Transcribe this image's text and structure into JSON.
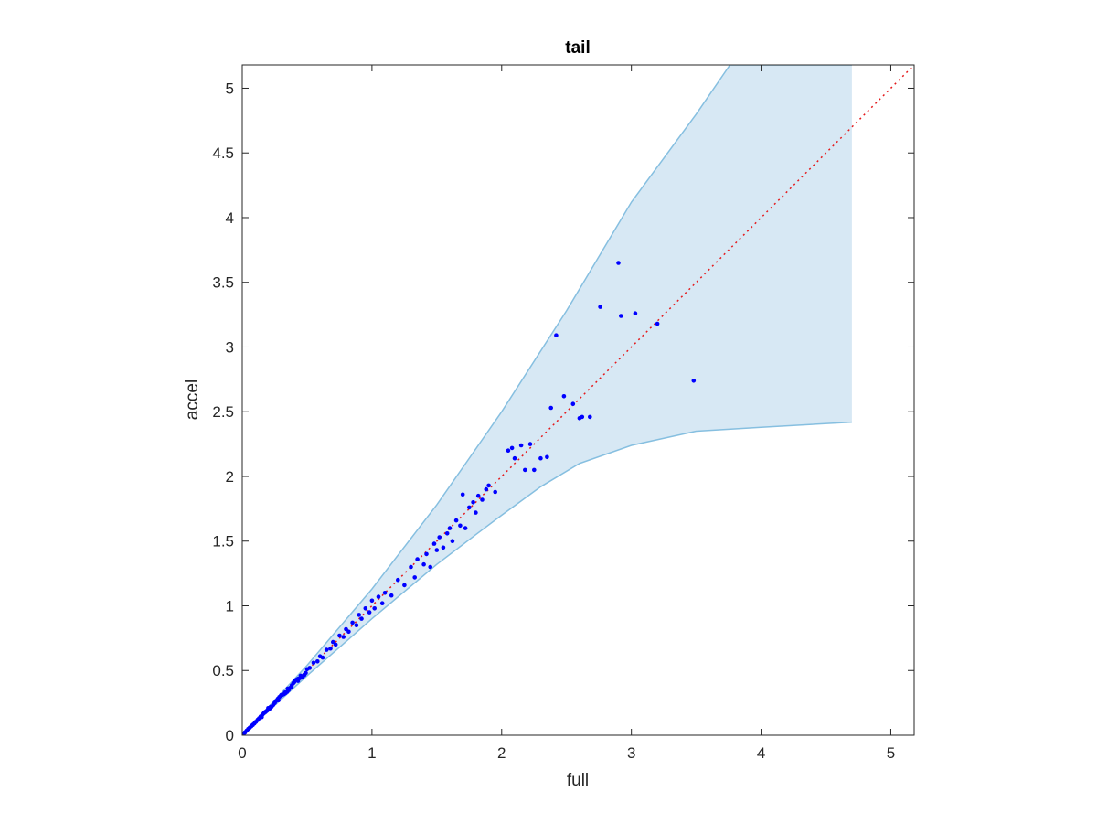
{
  "chart_data": {
    "type": "scatter",
    "title": "tail",
    "xlabel": "full",
    "ylabel": "accel",
    "xlim": [
      0,
      5.18
    ],
    "ylim": [
      0,
      5.18
    ],
    "grid": false,
    "x_ticks": [
      "0",
      "1",
      "2",
      "3",
      "4",
      "5"
    ],
    "y_ticks": [
      "0",
      "0.5",
      "1",
      "1.5",
      "2",
      "2.5",
      "3",
      "3.5",
      "4",
      "4.5",
      "5"
    ],
    "reference_line": {
      "style": "dotted",
      "color": "#e41a1c",
      "slope": 1,
      "intercept": 0
    },
    "band": {
      "fill_color": "#d7e8f4",
      "edge_color": "#86bfe0",
      "upper": [
        [
          0,
          0
        ],
        [
          0.5,
          0.54
        ],
        [
          1,
          1.13
        ],
        [
          1.5,
          1.78
        ],
        [
          2,
          2.5
        ],
        [
          2.5,
          3.28
        ],
        [
          3,
          4.12
        ],
        [
          3.5,
          4.8
        ],
        [
          3.76,
          5.18
        ],
        [
          4.7,
          5.18
        ]
      ],
      "lower": [
        [
          0,
          0
        ],
        [
          0.5,
          0.46
        ],
        [
          1,
          0.9
        ],
        [
          1.5,
          1.32
        ],
        [
          1.8,
          1.55
        ],
        [
          2,
          1.7
        ],
        [
          2.3,
          1.92
        ],
        [
          2.6,
          2.1
        ],
        [
          3,
          2.24
        ],
        [
          3.5,
          2.35
        ],
        [
          4,
          2.38
        ],
        [
          4.7,
          2.42
        ]
      ]
    },
    "series": [
      {
        "color": "#0000ff",
        "points": [
          [
            0.02,
            0.02
          ],
          [
            0.05,
            0.05
          ],
          [
            0.08,
            0.08
          ],
          [
            0.1,
            0.1
          ],
          [
            0.12,
            0.12
          ],
          [
            0.15,
            0.14
          ],
          [
            0.18,
            0.18
          ],
          [
            0.2,
            0.21
          ],
          [
            0.22,
            0.22
          ],
          [
            0.25,
            0.25
          ],
          [
            0.28,
            0.27
          ],
          [
            0.3,
            0.31
          ],
          [
            0.33,
            0.33
          ],
          [
            0.35,
            0.36
          ],
          [
            0.38,
            0.37
          ],
          [
            0.4,
            0.41
          ],
          [
            0.43,
            0.42
          ],
          [
            0.45,
            0.46
          ],
          [
            0.48,
            0.47
          ],
          [
            0.5,
            0.51
          ],
          [
            0.52,
            0.52
          ],
          [
            0.55,
            0.56
          ],
          [
            0.58,
            0.57
          ],
          [
            0.6,
            0.61
          ],
          [
            0.62,
            0.6
          ],
          [
            0.65,
            0.66
          ],
          [
            0.68,
            0.67
          ],
          [
            0.7,
            0.72
          ],
          [
            0.72,
            0.7
          ],
          [
            0.75,
            0.77
          ],
          [
            0.78,
            0.76
          ],
          [
            0.8,
            0.82
          ],
          [
            0.82,
            0.8
          ],
          [
            0.85,
            0.87
          ],
          [
            0.88,
            0.85
          ],
          [
            0.9,
            0.93
          ],
          [
            0.92,
            0.9
          ],
          [
            0.95,
            0.98
          ],
          [
            0.98,
            0.95
          ],
          [
            1,
            1.04
          ],
          [
            1.02,
            0.98
          ],
          [
            1.05,
            1.07
          ],
          [
            1.08,
            1.02
          ],
          [
            1.1,
            1.1
          ],
          [
            1.15,
            1.08
          ],
          [
            1.2,
            1.2
          ],
          [
            1.25,
            1.16
          ],
          [
            1.3,
            1.3
          ],
          [
            1.33,
            1.22
          ],
          [
            1.35,
            1.36
          ],
          [
            1.4,
            1.32
          ],
          [
            1.42,
            1.4
          ],
          [
            1.45,
            1.3
          ],
          [
            1.48,
            1.48
          ],
          [
            1.5,
            1.43
          ],
          [
            1.52,
            1.53
          ],
          [
            1.55,
            1.45
          ],
          [
            1.58,
            1.56
          ],
          [
            1.6,
            1.6
          ],
          [
            1.62,
            1.5
          ],
          [
            1.65,
            1.66
          ],
          [
            1.68,
            1.62
          ],
          [
            1.7,
            1.86
          ],
          [
            1.72,
            1.6
          ],
          [
            1.75,
            1.76
          ],
          [
            1.78,
            1.8
          ],
          [
            1.8,
            1.72
          ],
          [
            1.82,
            1.85
          ],
          [
            1.85,
            1.82
          ],
          [
            1.88,
            1.9
          ],
          [
            1.9,
            1.93
          ],
          [
            1.95,
            1.88
          ],
          [
            2.05,
            2.2
          ],
          [
            2.08,
            2.22
          ],
          [
            2.1,
            2.14
          ],
          [
            2.15,
            2.24
          ],
          [
            2.18,
            2.05
          ],
          [
            2.22,
            2.25
          ],
          [
            2.25,
            2.05
          ],
          [
            2.3,
            2.14
          ],
          [
            2.35,
            2.15
          ],
          [
            2.38,
            2.53
          ],
          [
            2.42,
            3.09
          ],
          [
            2.48,
            2.62
          ],
          [
            2.55,
            2.56
          ],
          [
            2.6,
            2.45
          ],
          [
            2.62,
            2.46
          ],
          [
            2.68,
            2.46
          ],
          [
            2.76,
            3.31
          ],
          [
            2.9,
            3.65
          ],
          [
            2.92,
            3.24
          ],
          [
            3.03,
            3.26
          ],
          [
            3.2,
            3.18
          ],
          [
            3.48,
            2.74
          ]
        ]
      }
    ]
  }
}
